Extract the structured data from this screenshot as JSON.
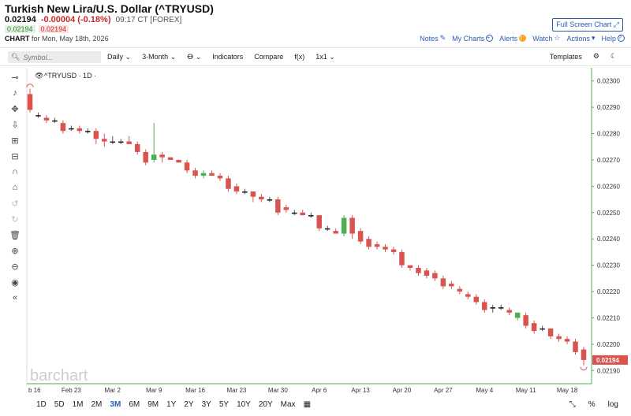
{
  "header": {
    "title": "Turkish New Lira/U.S. Dollar (^TRYUSD)",
    "last": "0.02194",
    "change": "-0.00004 (-0.18%)",
    "meta": "09:17 CT [FOREX]",
    "bid": "0.02194",
    "ask": "0.02194",
    "chart_label": "CHART",
    "chart_for": "for Mon, May 18th, 2026",
    "fullscreen": "Full Screen Chart",
    "links": {
      "notes": "Notes",
      "my_charts": "My Charts",
      "alerts": "Alerts",
      "watch": "Watch",
      "actions": "Actions",
      "help": "Help"
    }
  },
  "toolbar": {
    "search_placeholder": "Symbol...",
    "interval": "Daily",
    "range": "3-Month",
    "indicators": "Indicators",
    "compare": "Compare",
    "fx": "f(x)",
    "layout": "1x1",
    "templates": "Templates"
  },
  "legend": "^TRYUSD · 1D ·",
  "watermark": "barchart",
  "bottom": {
    "ranges": [
      "1D",
      "5D",
      "1M",
      "2M",
      "3M",
      "6M",
      "9M",
      "1Y",
      "2Y",
      "3Y",
      "5Y",
      "10Y",
      "20Y",
      "Max"
    ],
    "selected": "3M",
    "percent": "%",
    "log": "log"
  },
  "colors": {
    "up": "#4caf50",
    "down": "#d9534f",
    "doji": "#111111",
    "accent": "#2a5db0",
    "axis_line": "#4caf50"
  },
  "chart_data": {
    "type": "candlestick",
    "ylim": [
      0.02185,
      0.02305
    ],
    "yticks": [
      0.0219,
      0.022,
      0.0221,
      0.0222,
      0.0223,
      0.0224,
      0.0225,
      0.0226,
      0.0227,
      0.0228,
      0.0229,
      0.023
    ],
    "ytick_labels": [
      "0.02190",
      "0.02200",
      "0.02210",
      "0.02220",
      "0.02230",
      "0.02240",
      "0.02250",
      "0.02260",
      "0.02270",
      "0.02280",
      "0.02290",
      "0.02300"
    ],
    "xtick_labels": [
      "b 16",
      "Feb 23",
      "Mar 2",
      "Mar 9",
      "Mar 16",
      "Mar 23",
      "Mar 30",
      "Apr 6",
      "Apr 13",
      "Apr 20",
      "Apr 27",
      "May 4",
      "May 11",
      "May 18"
    ],
    "xtick_index": [
      0,
      5,
      10,
      15,
      20,
      25,
      30,
      35,
      40,
      45,
      50,
      55,
      60,
      65
    ],
    "last_price_label": "0.02194",
    "candles": [
      [
        0.02295,
        0.02297,
        0.02288,
        0.02289
      ],
      [
        0.02287,
        0.02288,
        0.02286,
        0.02287
      ],
      [
        0.02286,
        0.02287,
        0.02284,
        0.02285
      ],
      [
        0.02285,
        0.02286,
        0.02284,
        0.02285
      ],
      [
        0.02284,
        0.02285,
        0.0228,
        0.02281
      ],
      [
        0.02282,
        0.02283,
        0.02281,
        0.02282
      ],
      [
        0.02282,
        0.02283,
        0.0228,
        0.02281
      ],
      [
        0.02281,
        0.02282,
        0.0228,
        0.02281
      ],
      [
        0.02281,
        0.02282,
        0.02276,
        0.02278
      ],
      [
        0.02278,
        0.0228,
        0.02275,
        0.02277
      ],
      [
        0.02277,
        0.02279,
        0.02276,
        0.02277
      ],
      [
        0.02277,
        0.02278,
        0.02276,
        0.02277
      ],
      [
        0.02277,
        0.02279,
        0.02276,
        0.02276
      ],
      [
        0.02276,
        0.02277,
        0.02272,
        0.02273
      ],
      [
        0.02273,
        0.02274,
        0.02268,
        0.02269
      ],
      [
        0.0227,
        0.02284,
        0.02269,
        0.02272
      ],
      [
        0.02272,
        0.02273,
        0.02269,
        0.02271
      ],
      [
        0.02271,
        0.02271,
        0.0227,
        0.0227
      ],
      [
        0.0227,
        0.0227,
        0.02269,
        0.02269
      ],
      [
        0.02269,
        0.0227,
        0.02265,
        0.02266
      ],
      [
        0.02266,
        0.02267,
        0.02263,
        0.02264
      ],
      [
        0.02264,
        0.02266,
        0.02263,
        0.02265
      ],
      [
        0.02265,
        0.02266,
        0.02264,
        0.02264
      ],
      [
        0.02264,
        0.02265,
        0.02262,
        0.02263
      ],
      [
        0.02263,
        0.02264,
        0.02258,
        0.02259
      ],
      [
        0.0226,
        0.02261,
        0.02257,
        0.02258
      ],
      [
        0.02258,
        0.02259,
        0.02257,
        0.02258
      ],
      [
        0.02258,
        0.02258,
        0.02254,
        0.02256
      ],
      [
        0.02256,
        0.02257,
        0.02254,
        0.02255
      ],
      [
        0.02255,
        0.02256,
        0.02254,
        0.02255
      ],
      [
        0.02255,
        0.02256,
        0.02249,
        0.0225
      ],
      [
        0.02252,
        0.02253,
        0.0225,
        0.02251
      ],
      [
        0.0225,
        0.02251,
        0.02249,
        0.0225
      ],
      [
        0.0225,
        0.02251,
        0.02249,
        0.02249
      ],
      [
        0.02249,
        0.0225,
        0.02248,
        0.02249
      ],
      [
        0.02249,
        0.02249,
        0.02243,
        0.02244
      ],
      [
        0.02244,
        0.02245,
        0.02243,
        0.02244
      ],
      [
        0.02243,
        0.02244,
        0.02242,
        0.02242
      ],
      [
        0.02242,
        0.02249,
        0.02241,
        0.02248
      ],
      [
        0.02248,
        0.02249,
        0.0224,
        0.02242
      ],
      [
        0.02243,
        0.02244,
        0.02238,
        0.02239
      ],
      [
        0.0224,
        0.02241,
        0.02236,
        0.02237
      ],
      [
        0.02238,
        0.02239,
        0.02236,
        0.02237
      ],
      [
        0.02237,
        0.02238,
        0.02235,
        0.02236
      ],
      [
        0.02236,
        0.02237,
        0.02234,
        0.02235
      ],
      [
        0.02235,
        0.02236,
        0.02229,
        0.0223
      ],
      [
        0.0223,
        0.0223,
        0.02228,
        0.02229
      ],
      [
        0.02229,
        0.0223,
        0.02226,
        0.02227
      ],
      [
        0.02228,
        0.02229,
        0.02225,
        0.02226
      ],
      [
        0.02227,
        0.02228,
        0.02224,
        0.02225
      ],
      [
        0.02225,
        0.02226,
        0.02221,
        0.02222
      ],
      [
        0.02223,
        0.02224,
        0.02221,
        0.02222
      ],
      [
        0.02221,
        0.02222,
        0.02219,
        0.0222
      ],
      [
        0.02219,
        0.0222,
        0.02217,
        0.02218
      ],
      [
        0.02218,
        0.02219,
        0.02215,
        0.02216
      ],
      [
        0.02216,
        0.02217,
        0.02212,
        0.02213
      ],
      [
        0.02214,
        0.02215,
        0.02212,
        0.02214
      ],
      [
        0.02214,
        0.02215,
        0.02213,
        0.02214
      ],
      [
        0.02213,
        0.02214,
        0.02211,
        0.02212
      ],
      [
        0.0221,
        0.02212,
        0.02209,
        0.02212
      ],
      [
        0.02211,
        0.02212,
        0.02206,
        0.02207
      ],
      [
        0.02208,
        0.02209,
        0.02204,
        0.02205
      ],
      [
        0.02206,
        0.02207,
        0.02205,
        0.02206
      ],
      [
        0.02206,
        0.02206,
        0.02202,
        0.02203
      ],
      [
        0.02203,
        0.02204,
        0.02201,
        0.02202
      ],
      [
        0.02202,
        0.02203,
        0.022,
        0.02201
      ],
      [
        0.02201,
        0.02202,
        0.02196,
        0.02197
      ],
      [
        0.02198,
        0.02199,
        0.02192,
        0.02194
      ]
    ]
  }
}
